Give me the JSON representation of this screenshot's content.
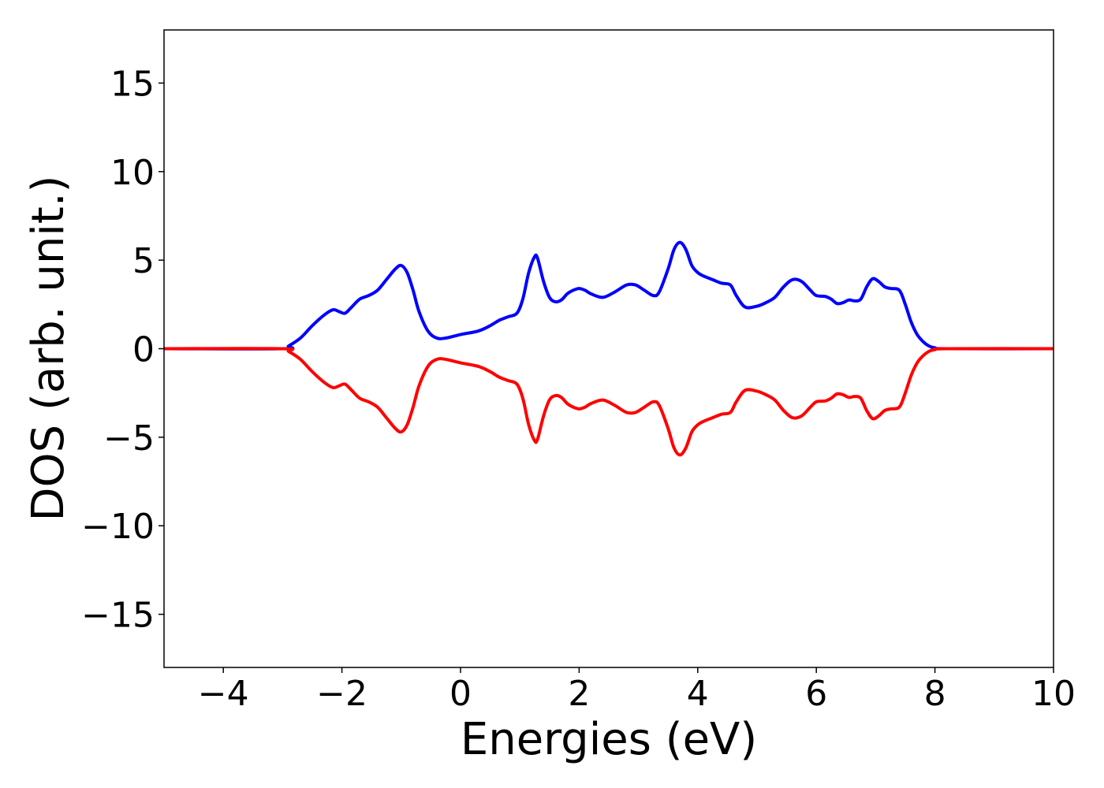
{
  "chart_data": {
    "type": "line",
    "title": "",
    "xlabel": "Energies (eV)",
    "ylabel": "DOS (arb. unit.)",
    "xlim": [
      -5,
      10
    ],
    "ylim": [
      -18,
      18
    ],
    "x_ticks": [
      -4,
      -2,
      0,
      2,
      4,
      6,
      8,
      10
    ],
    "y_ticks": [
      -15,
      -10,
      -5,
      0,
      5,
      10,
      15
    ],
    "x_tick_labels": [
      "−4",
      "−2",
      "0",
      "2",
      "4",
      "6",
      "8",
      "10"
    ],
    "y_tick_labels": [
      "−15",
      "−10",
      "−5",
      "0",
      "5",
      "10",
      "15"
    ],
    "grid": false,
    "legend": "none",
    "series": [
      {
        "color": "#0000ff",
        "x": [
          -5.0,
          -3.0,
          -2.9,
          -2.7,
          -2.5,
          -2.3,
          -2.15,
          -2.05,
          -1.95,
          -1.85,
          -1.7,
          -1.55,
          -1.4,
          -1.25,
          -1.1,
          -1.0,
          -0.9,
          -0.8,
          -0.7,
          -0.55,
          -0.4,
          -0.25,
          0.0,
          0.3,
          0.5,
          0.65,
          0.8,
          0.95,
          1.05,
          1.15,
          1.25,
          1.3,
          1.4,
          1.5,
          1.6,
          1.7,
          1.8,
          1.9,
          2.0,
          2.1,
          2.2,
          2.4,
          2.6,
          2.8,
          2.95,
          3.1,
          3.25,
          3.35,
          3.5,
          3.6,
          3.7,
          3.8,
          3.9,
          4.0,
          4.1,
          4.25,
          4.4,
          4.55,
          4.65,
          4.8,
          5.0,
          5.15,
          5.3,
          5.45,
          5.6,
          5.75,
          5.9,
          6.0,
          6.15,
          6.25,
          6.35,
          6.45,
          6.55,
          6.65,
          6.75,
          6.85,
          6.95,
          7.05,
          7.15,
          7.25,
          7.4,
          7.5,
          7.6,
          7.7,
          7.8,
          7.9,
          8.0,
          8.2,
          10.0
        ],
        "y": [
          0.0,
          0.0,
          0.15,
          0.6,
          1.3,
          1.9,
          2.2,
          2.1,
          2.0,
          2.3,
          2.8,
          3.0,
          3.3,
          3.9,
          4.5,
          4.7,
          4.3,
          3.3,
          2.1,
          1.0,
          0.6,
          0.6,
          0.8,
          1.0,
          1.3,
          1.6,
          1.8,
          2.0,
          2.8,
          4.3,
          5.2,
          5.1,
          3.8,
          2.9,
          2.65,
          2.75,
          3.1,
          3.3,
          3.4,
          3.3,
          3.1,
          2.9,
          3.2,
          3.6,
          3.6,
          3.3,
          3.0,
          3.2,
          4.5,
          5.6,
          6.0,
          5.6,
          4.7,
          4.3,
          4.1,
          3.9,
          3.7,
          3.6,
          3.0,
          2.35,
          2.4,
          2.6,
          2.9,
          3.5,
          3.9,
          3.8,
          3.3,
          3.0,
          2.95,
          2.8,
          2.55,
          2.6,
          2.75,
          2.7,
          2.8,
          3.5,
          3.95,
          3.8,
          3.5,
          3.4,
          3.3,
          2.5,
          1.5,
          0.8,
          0.4,
          0.15,
          0.05,
          0.0,
          0.0
        ]
      },
      {
        "color": "#ff0000",
        "x": [
          -5.0,
          -3.0,
          -2.9,
          -2.7,
          -2.5,
          -2.3,
          -2.15,
          -2.05,
          -1.95,
          -1.85,
          -1.7,
          -1.55,
          -1.4,
          -1.25,
          -1.1,
          -1.0,
          -0.9,
          -0.8,
          -0.7,
          -0.55,
          -0.4,
          -0.25,
          0.0,
          0.3,
          0.5,
          0.65,
          0.8,
          0.95,
          1.05,
          1.15,
          1.25,
          1.3,
          1.4,
          1.5,
          1.6,
          1.7,
          1.8,
          1.9,
          2.0,
          2.1,
          2.2,
          2.4,
          2.6,
          2.8,
          2.95,
          3.1,
          3.25,
          3.35,
          3.5,
          3.6,
          3.7,
          3.8,
          3.9,
          4.0,
          4.1,
          4.25,
          4.4,
          4.55,
          4.65,
          4.8,
          5.0,
          5.15,
          5.3,
          5.45,
          5.6,
          5.75,
          5.9,
          6.0,
          6.15,
          6.25,
          6.35,
          6.45,
          6.55,
          6.65,
          6.75,
          6.85,
          6.95,
          7.05,
          7.15,
          7.25,
          7.4,
          7.5,
          7.6,
          7.7,
          7.8,
          7.9,
          8.0,
          8.2,
          10.0
        ],
        "y": [
          0.0,
          0.0,
          -0.15,
          -0.6,
          -1.3,
          -1.9,
          -2.2,
          -2.1,
          -2.0,
          -2.3,
          -2.8,
          -3.0,
          -3.3,
          -3.9,
          -4.5,
          -4.7,
          -4.3,
          -3.3,
          -2.1,
          -1.0,
          -0.6,
          -0.6,
          -0.8,
          -1.0,
          -1.3,
          -1.6,
          -1.8,
          -2.0,
          -2.8,
          -4.3,
          -5.2,
          -5.1,
          -3.8,
          -2.9,
          -2.65,
          -2.75,
          -3.1,
          -3.3,
          -3.4,
          -3.3,
          -3.1,
          -2.9,
          -3.2,
          -3.6,
          -3.6,
          -3.3,
          -3.0,
          -3.2,
          -4.5,
          -5.6,
          -6.0,
          -5.6,
          -4.7,
          -4.3,
          -4.1,
          -3.9,
          -3.7,
          -3.6,
          -3.0,
          -2.35,
          -2.4,
          -2.6,
          -2.9,
          -3.5,
          -3.9,
          -3.8,
          -3.3,
          -3.0,
          -2.95,
          -2.8,
          -2.55,
          -2.6,
          -2.75,
          -2.7,
          -2.8,
          -3.5,
          -3.95,
          -3.8,
          -3.5,
          -3.4,
          -3.3,
          -2.5,
          -1.5,
          -0.8,
          -0.4,
          -0.15,
          -0.05,
          0.0,
          0.0
        ]
      }
    ]
  }
}
